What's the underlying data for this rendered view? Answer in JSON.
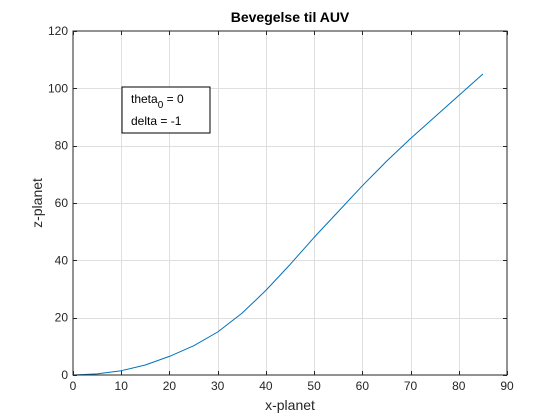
{
  "chart_data": {
    "type": "line",
    "title": "Bevegelse til AUV",
    "xlabel": "x-planet",
    "ylabel": "z-planet",
    "xlim": [
      0,
      90
    ],
    "ylim": [
      0,
      120
    ],
    "xticks": [
      0,
      10,
      20,
      30,
      40,
      50,
      60,
      70,
      80,
      90
    ],
    "yticks": [
      0,
      20,
      40,
      60,
      80,
      100,
      120
    ],
    "grid": true,
    "series": [
      {
        "color": "#0072bd",
        "x": [
          0,
          5,
          10,
          15,
          20,
          25,
          30,
          35,
          40,
          45,
          50,
          55,
          60,
          65,
          70,
          75,
          80,
          85
        ],
        "y": [
          0,
          0.4,
          1.5,
          3.5,
          6.5,
          10.2,
          15.0,
          21.5,
          29.5,
          38.5,
          48.0,
          57.0,
          66.0,
          74.5,
          82.5,
          90.0,
          97.5,
          105.0
        ]
      }
    ],
    "annotation": {
      "theta_label": "theta",
      "theta_subscript": "0",
      "theta_value": " = 0",
      "delta_line": "delta = -1"
    }
  }
}
